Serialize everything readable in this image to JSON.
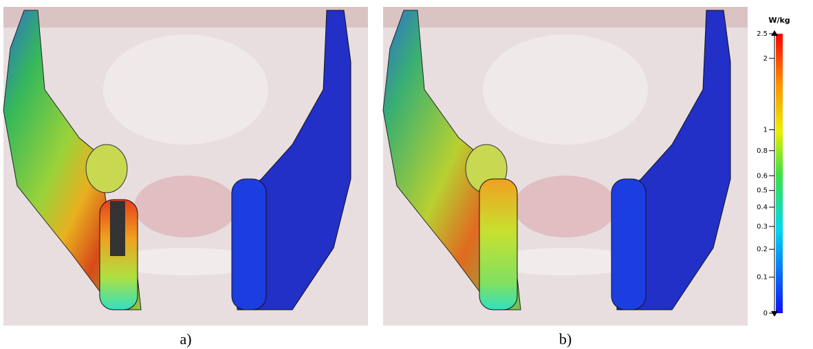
{
  "panels": [
    {
      "label": "a)"
    },
    {
      "label": "b)"
    }
  ],
  "colorbar": {
    "unit": "W/kg",
    "ticks": [
      0,
      0.1,
      0.2,
      0.3,
      0.4,
      0.5,
      0.6,
      0.8,
      1,
      2,
      2.5
    ]
  }
}
